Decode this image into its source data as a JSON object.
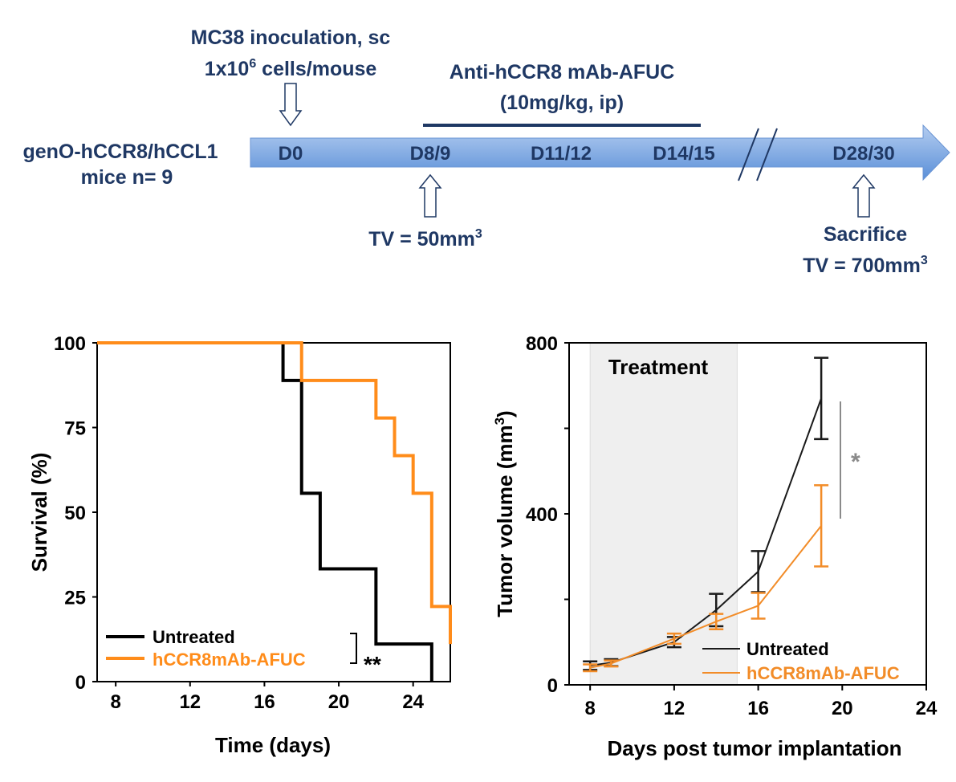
{
  "timeline": {
    "mouse_label_1": "genO-hCCR8/hCCL1",
    "mouse_label_2": "mice n= 9",
    "inoculation_line1": "MC38 inoculation, sc",
    "inoculation_line2_prefix": "1x10",
    "inoculation_line2_sup": "6",
    "inoculation_line2_suffix": " cells/mouse",
    "treatment_line1": "Anti-hCCR8 mAb-AFUC",
    "treatment_line2": "(10mg/kg, ip)",
    "days": [
      "D0",
      "D8/9",
      "D11/12",
      "D14/15",
      "D28/30"
    ],
    "tv_start_prefix": "TV = 50mm",
    "tv_start_sup": "3",
    "sacrifice_label": "Sacrifice",
    "tv_end_prefix": "TV = 700mm",
    "tv_end_sup": "3",
    "colors": {
      "text": "#1f3864",
      "arrow_top": "#b4cdf0",
      "arrow_bottom": "#5a8fd8",
      "bar": "#1f3864"
    }
  },
  "chart_data": [
    {
      "type": "line",
      "subtype": "kaplan-meier",
      "xlabel": "Time (days)",
      "ylabel": "Survival (%)",
      "xlim": [
        7,
        26
      ],
      "ylim": [
        0,
        100
      ],
      "xticks": [
        8,
        12,
        16,
        20,
        24
      ],
      "yticks": [
        0,
        25,
        50,
        75,
        100
      ],
      "series": [
        {
          "name": "Untreated",
          "color": "#000000",
          "steps": [
            [
              7,
              100
            ],
            [
              17,
              100
            ],
            [
              17,
              88.9
            ],
            [
              18,
              88.9
            ],
            [
              18,
              55.6
            ],
            [
              19,
              55.6
            ],
            [
              19,
              33.3
            ],
            [
              22,
              33.3
            ],
            [
              22,
              11.1
            ],
            [
              25,
              11.1
            ],
            [
              25,
              0
            ]
          ]
        },
        {
          "name": "hCCR8mAb-AFUC",
          "color": "#ff8c1a",
          "steps": [
            [
              7,
              100
            ],
            [
              18,
              100
            ],
            [
              18,
              88.9
            ],
            [
              22,
              88.9
            ],
            [
              22,
              77.8
            ],
            [
              23,
              77.8
            ],
            [
              23,
              66.7
            ],
            [
              24,
              66.7
            ],
            [
              24,
              55.6
            ],
            [
              25,
              55.6
            ],
            [
              25,
              22.2
            ],
            [
              26,
              22.2
            ],
            [
              26,
              11.1
            ]
          ]
        }
      ],
      "significance": "**",
      "legend_position": "bottom-left"
    },
    {
      "type": "line",
      "xlabel": "Days post tumor implantation",
      "ylabel_prefix": "Tumor volume (mm",
      "ylabel_sup": "3",
      "ylabel_suffix": ")",
      "xlim": [
        7,
        24
      ],
      "ylim": [
        0,
        800
      ],
      "xticks": [
        8,
        12,
        16,
        20,
        24
      ],
      "yticks": [
        0,
        400,
        800
      ],
      "shaded_region": {
        "label": "Treatment",
        "x": [
          8,
          15
        ]
      },
      "series": [
        {
          "name": "Untreated",
          "color": "#1a1a1a",
          "x": [
            8,
            9,
            12,
            14,
            16,
            19
          ],
          "y": [
            45,
            52,
            100,
            175,
            265,
            670
          ],
          "err": [
            10,
            8,
            12,
            38,
            48,
            95
          ]
        },
        {
          "name": "hCCR8mAb-AFUC",
          "color": "#f28c28",
          "x": [
            8,
            9,
            12,
            14,
            16,
            19
          ],
          "y": [
            40,
            50,
            108,
            148,
            185,
            372
          ],
          "err": [
            8,
            7,
            12,
            18,
            30,
            95
          ]
        }
      ],
      "significance": "*",
      "legend_position": "bottom-right"
    }
  ]
}
